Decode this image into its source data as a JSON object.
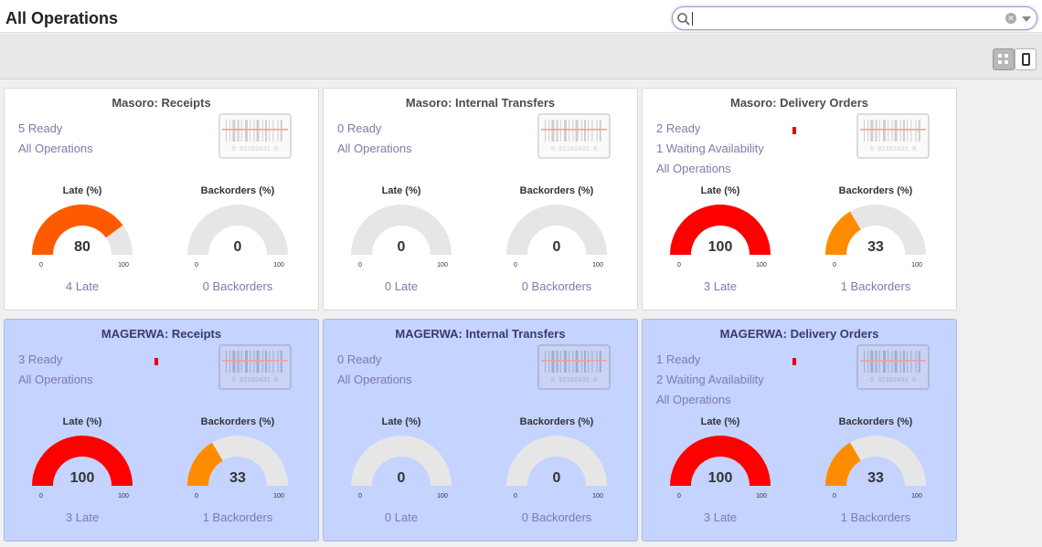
{
  "header": {
    "title": "All Operations",
    "search": {
      "value": "",
      "placeholder": ""
    }
  },
  "view_switcher": {
    "kanban_icon": "grid-icon",
    "list_icon": "mobile-icon"
  },
  "colors": {
    "link": "#7c7bad",
    "card_blue": "#c4d3ff",
    "late_high": "#ff0000",
    "late_orange": "#ff5a00",
    "backorder_orange": "#ff8c00",
    "gauge_track": "#e6e6e6"
  },
  "cards": [
    {
      "title": "Masoro: Receipts",
      "links": [
        "5 Ready",
        "All Operations"
      ],
      "warning_mark": false,
      "late": {
        "label": "Late (%)",
        "value": 80,
        "min": "0",
        "max": "100",
        "footer": "4 Late"
      },
      "backorders": {
        "label": "Backorders (%)",
        "value": 0,
        "min": "0",
        "max": "100",
        "footer": "0 Backorders"
      }
    },
    {
      "title": "Masoro: Internal Transfers",
      "links": [
        "0 Ready",
        "All Operations"
      ],
      "warning_mark": false,
      "late": {
        "label": "Late (%)",
        "value": 0,
        "min": "0",
        "max": "100",
        "footer": "0 Late"
      },
      "backorders": {
        "label": "Backorders (%)",
        "value": 0,
        "min": "0",
        "max": "100",
        "footer": "0 Backorders"
      }
    },
    {
      "title": "Masoro: Delivery Orders",
      "links": [
        "2 Ready",
        "1 Waiting Availability",
        "All Operations"
      ],
      "warning_mark": true,
      "late": {
        "label": "Late (%)",
        "value": 100,
        "min": "0",
        "max": "100",
        "footer": "3 Late"
      },
      "backorders": {
        "label": "Backorders (%)",
        "value": 33,
        "min": "0",
        "max": "100",
        "footer": "1 Backorders"
      }
    },
    {
      "title": "MAGERWA: Receipts",
      "links": [
        "3 Ready",
        "All Operations"
      ],
      "warning_mark": true,
      "late": {
        "label": "Late (%)",
        "value": 100,
        "min": "0",
        "max": "100",
        "footer": "3 Late"
      },
      "backorders": {
        "label": "Backorders (%)",
        "value": 33,
        "min": "0",
        "max": "100",
        "footer": "1 Backorders"
      }
    },
    {
      "title": "MAGERWA: Internal Transfers",
      "links": [
        "0 Ready",
        "All Operations"
      ],
      "warning_mark": false,
      "late": {
        "label": "Late (%)",
        "value": 0,
        "min": "0",
        "max": "100",
        "footer": "0 Late"
      },
      "backorders": {
        "label": "Backorders (%)",
        "value": 0,
        "min": "0",
        "max": "100",
        "footer": "0 Backorders"
      }
    },
    {
      "title": "MAGERWA: Delivery Orders",
      "links": [
        "1 Ready",
        "2 Waiting Availability",
        "All Operations"
      ],
      "warning_mark": true,
      "late": {
        "label": "Late (%)",
        "value": 100,
        "min": "0",
        "max": "100",
        "footer": "3 Late"
      },
      "backorders": {
        "label": "Backorders (%)",
        "value": 33,
        "min": "0",
        "max": "100",
        "footer": "1 Backorders"
      }
    }
  ],
  "barcode_text": "5 92102431 8"
}
